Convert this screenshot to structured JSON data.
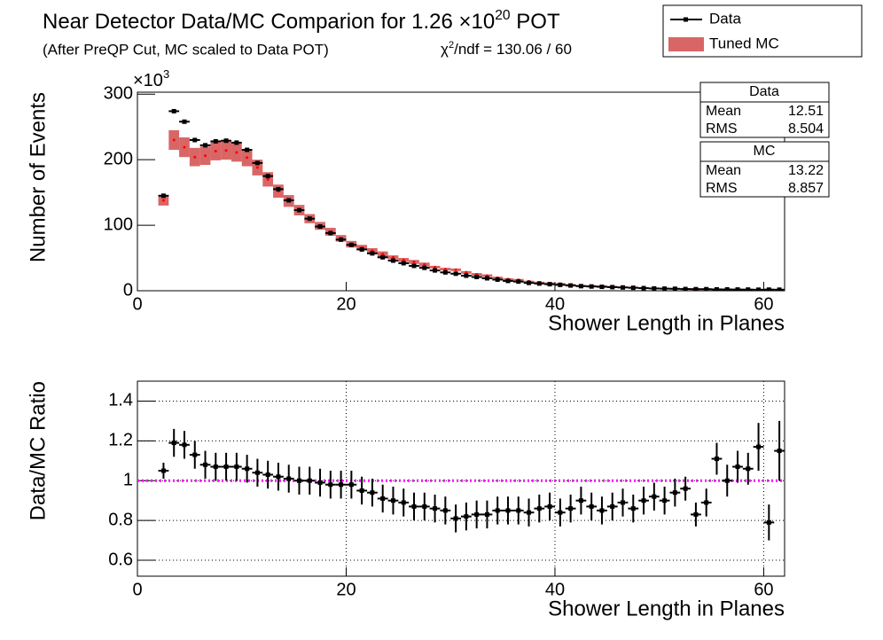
{
  "chart_data": [
    {
      "type": "errorbar",
      "title": [
        "Near Detector Data/MC Comparion for 1.26 ×10",
        "20",
        " POT"
      ],
      "subtitle": "(After PreQP Cut, MC scaled to Data POT)",
      "annotation": [
        "χ",
        "2",
        "/ndf = 130.06 / 60"
      ],
      "y_multiplier": [
        "×10",
        "3"
      ],
      "x_label": "Shower Length in Planes",
      "y_label": "Number of Events",
      "xlim": [
        0,
        62
      ],
      "xticks": [
        0,
        20,
        40,
        60
      ],
      "ylim": [
        0,
        303
      ],
      "yticks": [
        0,
        100,
        200,
        300
      ],
      "grid": false,
      "legend": "top-right",
      "x": [
        2.5,
        3.5,
        4.5,
        5.5,
        6.5,
        7.5,
        8.5,
        9.5,
        10.5,
        11.5,
        12.5,
        13.5,
        14.5,
        15.5,
        16.5,
        17.5,
        18.5,
        19.5,
        20.5,
        21.5,
        22.5,
        23.5,
        24.5,
        25.5,
        26.5,
        27.5,
        28.5,
        29.5,
        30.5,
        31.5,
        32.5,
        33.5,
        34.5,
        35.5,
        36.5,
        37.5,
        38.5,
        39.5,
        40.5,
        41.5,
        42.5,
        43.5,
        44.5,
        45.5,
        46.5,
        47.5,
        48.5,
        49.5,
        50.5,
        51.5,
        52.5,
        53.5,
        54.5,
        55.5,
        56.5,
        57.5,
        58.5,
        59.5,
        60.5,
        61.5
      ],
      "series": [
        {
          "name": "Tuned MC",
          "style": "band",
          "color": "#cc3333",
          "values": [
            138,
            230,
            219,
            204,
            206,
            213,
            214,
            211,
            203,
            188,
            170,
            152,
            137,
            123,
            110,
            99,
            90,
            80,
            71,
            66,
            61,
            56,
            51,
            47,
            44,
            40,
            36,
            33,
            32,
            28,
            25,
            23,
            20,
            17.6,
            16.5,
            14.3,
            12.8,
            11.5,
            10.7,
            9.3,
            7.8,
            7.5,
            7.1,
            6.3,
            5.6,
            5.2,
            4.4,
            3.8,
            3.6,
            3.2,
            2.7,
            2.9,
            2.7,
            1.9,
            2,
            1.8,
            1.7,
            1.4,
            2.2,
            1.4
          ],
          "errors": [
            8,
            15,
            15,
            14,
            14,
            14,
            14,
            14,
            13,
            12,
            11,
            10,
            9,
            8,
            7,
            6,
            6,
            5,
            5,
            4,
            4,
            4,
            3,
            3,
            3,
            3,
            2,
            2,
            2,
            2,
            2,
            2,
            1.5,
            1.5,
            1.5,
            1,
            1,
            1,
            1,
            1,
            1,
            1,
            1,
            1,
            1,
            1,
            1,
            1,
            1,
            1,
            1,
            1,
            1,
            1,
            1,
            1,
            1,
            1,
            1,
            1
          ]
        },
        {
          "name": "Data",
          "style": "points",
          "color": "#000000",
          "values": [
            145,
            274,
            258,
            230,
            222,
            228,
            229,
            226,
            215,
            195,
            175,
            155,
            138,
            123,
            110,
            98,
            88,
            78,
            70,
            63,
            57,
            51,
            46,
            42,
            38,
            35,
            31,
            28,
            26,
            23,
            21,
            19,
            17,
            15,
            14,
            12,
            11,
            10,
            9,
            8,
            7,
            6.5,
            6,
            5.5,
            5,
            4.5,
            4,
            3.5,
            3.2,
            3,
            2.6,
            2.4,
            2.4,
            2.1,
            2,
            1.9,
            1.8,
            1.6,
            1.7,
            1.6
          ]
        }
      ],
      "stats": [
        {
          "name": "Data",
          "color": "#000000",
          "rows": [
            {
              "label": "Mean",
              "value": 12.51
            },
            {
              "label": "RMS",
              "value": 8.504
            }
          ]
        },
        {
          "name": "MC",
          "color": "#ff0000",
          "rows": [
            {
              "label": "Mean",
              "value": 13.22
            },
            {
              "label": "RMS",
              "value": 8.857
            }
          ]
        }
      ]
    },
    {
      "type": "errorbar",
      "x_label": "Shower Length in Planes",
      "y_label": "Data/MC Ratio",
      "xlim": [
        0,
        62
      ],
      "xticks": [
        0,
        20,
        40,
        60
      ],
      "ylim": [
        0.52,
        1.5
      ],
      "yticks": [
        0.6,
        0.8,
        1,
        1.2,
        1.4
      ],
      "grid": true,
      "reference_line": 1,
      "reference_color": "#ff00ff",
      "x": [
        2.5,
        3.5,
        4.5,
        5.5,
        6.5,
        7.5,
        8.5,
        9.5,
        10.5,
        11.5,
        12.5,
        13.5,
        14.5,
        15.5,
        16.5,
        17.5,
        18.5,
        19.5,
        20.5,
        21.5,
        22.5,
        23.5,
        24.5,
        25.5,
        26.5,
        27.5,
        28.5,
        29.5,
        30.5,
        31.5,
        32.5,
        33.5,
        34.5,
        35.5,
        36.5,
        37.5,
        38.5,
        39.5,
        40.5,
        41.5,
        42.5,
        43.5,
        44.5,
        45.5,
        46.5,
        47.5,
        48.5,
        49.5,
        50.5,
        51.5,
        52.5,
        53.5,
        54.5,
        55.5,
        56.5,
        57.5,
        58.5,
        59.5,
        60.5,
        61.5
      ],
      "series": [
        {
          "style": "points",
          "color": "#000000",
          "values": [
            1.05,
            1.19,
            1.18,
            1.13,
            1.08,
            1.07,
            1.07,
            1.07,
            1.06,
            1.04,
            1.03,
            1.02,
            1.01,
            1,
            1,
            0.99,
            0.98,
            0.98,
            0.98,
            0.95,
            0.94,
            0.91,
            0.9,
            0.89,
            0.87,
            0.87,
            0.86,
            0.85,
            0.81,
            0.82,
            0.83,
            0.83,
            0.85,
            0.85,
            0.85,
            0.84,
            0.86,
            0.87,
            0.84,
            0.86,
            0.9,
            0.87,
            0.85,
            0.87,
            0.89,
            0.86,
            0.9,
            0.92,
            0.9,
            0.94,
            0.96,
            0.83,
            0.89,
            1.11,
            1,
            1.07,
            1.06,
            1.17,
            0.79,
            1.15
          ],
          "errors": [
            0.04,
            0.07,
            0.07,
            0.07,
            0.07,
            0.07,
            0.07,
            0.07,
            0.07,
            0.07,
            0.07,
            0.07,
            0.07,
            0.07,
            0.07,
            0.07,
            0.07,
            0.07,
            0.07,
            0.07,
            0.07,
            0.07,
            0.07,
            0.07,
            0.07,
            0.07,
            0.07,
            0.07,
            0.07,
            0.07,
            0.07,
            0.07,
            0.07,
            0.07,
            0.07,
            0.07,
            0.07,
            0.07,
            0.07,
            0.07,
            0.07,
            0.07,
            0.07,
            0.07,
            0.07,
            0.07,
            0.07,
            0.07,
            0.07,
            0.07,
            0.06,
            0.06,
            0.07,
            0.08,
            0.08,
            0.08,
            0.08,
            0.12,
            0.09,
            0.15
          ]
        }
      ]
    }
  ]
}
